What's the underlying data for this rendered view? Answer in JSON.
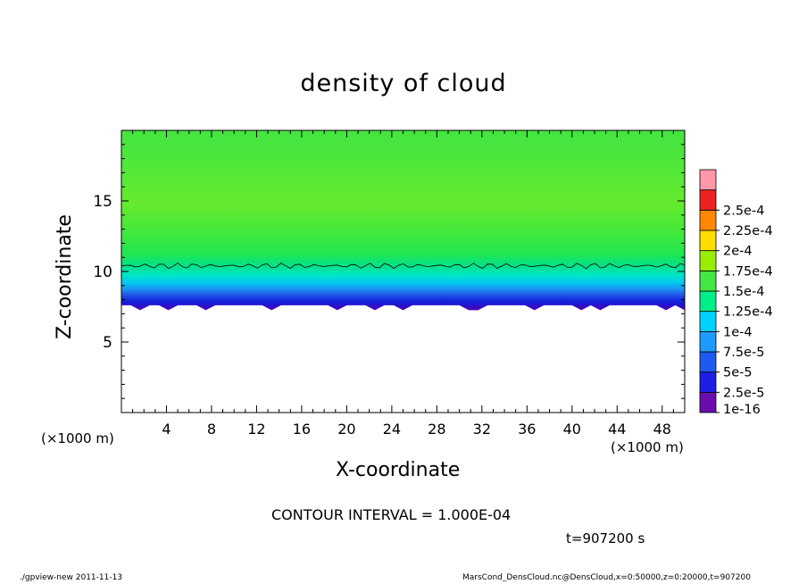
{
  "chart_data": {
    "type": "heatmap",
    "title": "density of cloud",
    "xlabel": "X-coordinate",
    "ylabel": "Z-coordinate",
    "x_unit_label": "(×1000 m)",
    "xlim": [
      0,
      50
    ],
    "ylim": [
      0,
      20
    ],
    "x_ticks": [
      "4",
      "8",
      "12",
      "16",
      "20",
      "24",
      "28",
      "32",
      "36",
      "40",
      "44",
      "48"
    ],
    "y_ticks": [
      "5",
      "10",
      "15"
    ],
    "contour_interval": "CONTOUR INTERVAL = 1.000E-04",
    "contour_line_level": "1e-4",
    "contour_line_z": 10.4,
    "cloud_base_z": 7.6,
    "vertical_profile": [
      {
        "z": 7.6,
        "density": "1e-16"
      },
      {
        "z": 8.0,
        "density": "2.5e-5"
      },
      {
        "z": 8.5,
        "density": "5e-5"
      },
      {
        "z": 9.3,
        "density": "7.5e-5"
      },
      {
        "z": 10.4,
        "density": "1e-4"
      },
      {
        "z": 13.0,
        "density": "1.25e-4"
      },
      {
        "z": 20.0,
        "density": "1.5e-4"
      }
    ],
    "colorbar": {
      "labels": [
        "1e-16",
        "2.5e-5",
        "5e-5",
        "7.5e-5",
        "1e-4",
        "1.25e-4",
        "1.5e-4",
        "1.75e-4",
        "2e-4",
        "2.25e-4",
        "2.5e-4"
      ],
      "colors": [
        "#6a0dad",
        "#1e1ee6",
        "#1e5af0",
        "#1e9bff",
        "#00d2ff",
        "#00ee88",
        "#44e844",
        "#99ee00",
        "#ffdd00",
        "#ff8800",
        "#ee2222",
        "#ff99aa"
      ]
    },
    "time_label": "t=907200 s"
  },
  "footer": {
    "left": "./gpview-new   2011-11-13",
    "right": "MarsCond_DensCloud.nc@DensCloud,x=0:50000,z=0:20000,t=907200"
  }
}
